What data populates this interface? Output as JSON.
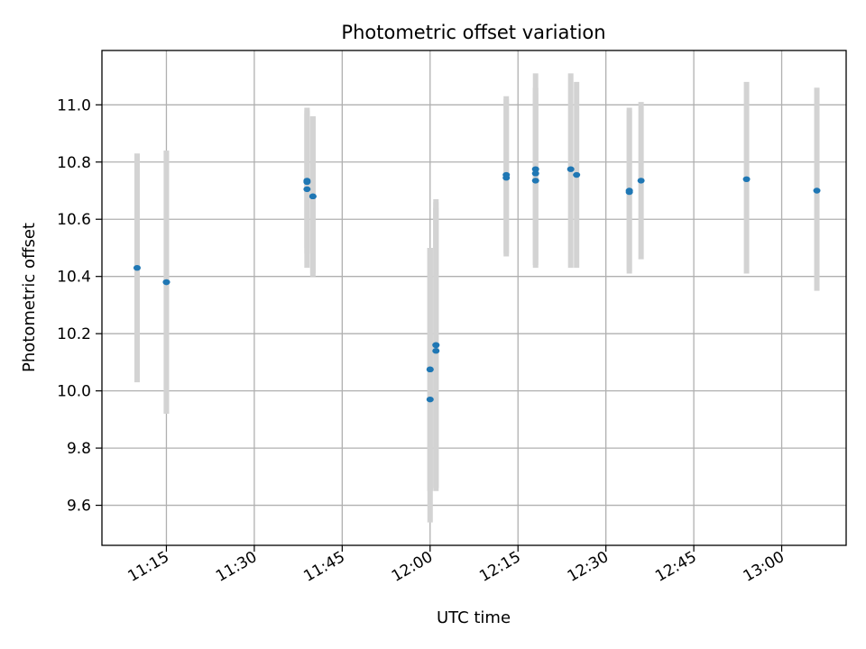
{
  "chart_data": {
    "type": "scatter",
    "title": "Photometric offset variation",
    "xlabel": "UTC time",
    "ylabel": "Photometric offset",
    "xlim": [
      "11:04",
      "13:11"
    ],
    "ylim": [
      9.46,
      11.19
    ],
    "x_ticks": [
      "11:15",
      "11:30",
      "11:45",
      "12:00",
      "12:15",
      "12:30",
      "12:45",
      "13:00"
    ],
    "y_ticks": [
      9.6,
      9.8,
      10.0,
      10.2,
      10.4,
      10.6,
      10.8,
      11.0
    ],
    "grid": true,
    "marker_color": "#1f77b4",
    "errorbar_color": "#d3d3d3",
    "points": [
      {
        "t": "11:10",
        "y": 10.43,
        "lo": 10.03,
        "hi": 10.83
      },
      {
        "t": "11:15",
        "y": 10.38,
        "lo": 9.92,
        "hi": 10.84
      },
      {
        "t": "11:15",
        "y": 10.38,
        "lo": 9.92,
        "hi": 10.84
      },
      {
        "t": "11:39",
        "y": 10.735,
        "lo": 10.5,
        "hi": 10.97
      },
      {
        "t": "11:39",
        "y": 10.73,
        "lo": 10.48,
        "hi": 10.99
      },
      {
        "t": "11:39",
        "y": 10.705,
        "lo": 10.43,
        "hi": 10.98
      },
      {
        "t": "11:40",
        "y": 10.68,
        "lo": 10.41,
        "hi": 10.96
      },
      {
        "t": "11:40",
        "y": 10.68,
        "lo": 10.4,
        "hi": 10.96
      },
      {
        "t": "12:00",
        "y": 9.97,
        "lo": 9.54,
        "hi": 10.5
      },
      {
        "t": "12:00",
        "y": 10.075,
        "lo": 9.65,
        "hi": 10.5
      },
      {
        "t": "12:00",
        "y": 10.075,
        "lo": 9.65,
        "hi": 10.5
      },
      {
        "t": "12:01",
        "y": 10.14,
        "lo": 9.65,
        "hi": 10.64
      },
      {
        "t": "12:01",
        "y": 10.16,
        "lo": 9.66,
        "hi": 10.66
      },
      {
        "t": "12:01",
        "y": 10.16,
        "lo": 9.66,
        "hi": 10.67
      },
      {
        "t": "12:13",
        "y": 10.745,
        "lo": 10.47,
        "hi": 11.02
      },
      {
        "t": "12:13",
        "y": 10.755,
        "lo": 10.48,
        "hi": 11.03
      },
      {
        "t": "12:18",
        "y": 10.775,
        "lo": 10.44,
        "hi": 11.11
      },
      {
        "t": "12:18",
        "y": 10.735,
        "lo": 10.43,
        "hi": 11.04
      },
      {
        "t": "12:18",
        "y": 10.76,
        "lo": 10.46,
        "hi": 11.06
      },
      {
        "t": "12:24",
        "y": 10.775,
        "lo": 10.43,
        "hi": 11.11
      },
      {
        "t": "12:25",
        "y": 10.755,
        "lo": 10.43,
        "hi": 11.08
      },
      {
        "t": "12:34",
        "y": 10.7,
        "lo": 10.41,
        "hi": 10.99
      },
      {
        "t": "12:34",
        "y": 10.695,
        "lo": 10.42,
        "hi": 10.98
      },
      {
        "t": "12:36",
        "y": 10.735,
        "lo": 10.46,
        "hi": 11.01
      },
      {
        "t": "12:54",
        "y": 10.74,
        "lo": 10.41,
        "hi": 11.08
      },
      {
        "t": "13:06",
        "y": 10.7,
        "lo": 10.35,
        "hi": 11.06
      }
    ]
  }
}
